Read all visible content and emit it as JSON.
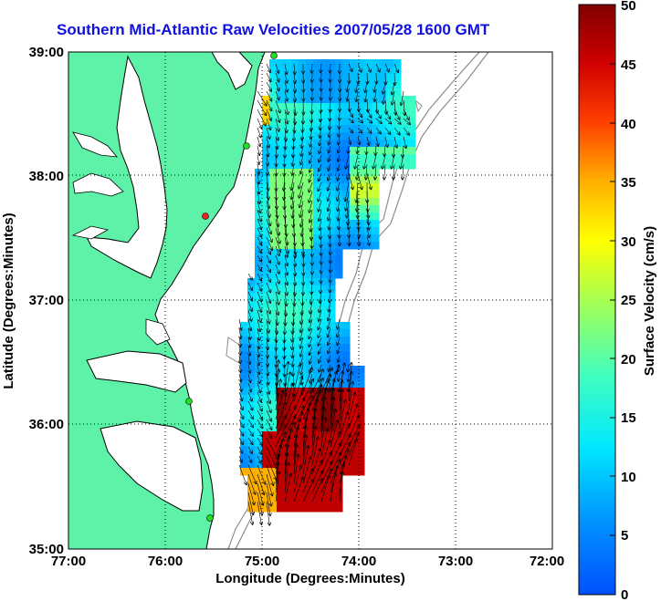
{
  "title": "Southern Mid-Atlantic Raw Velocities 2007/05/28 1600 GMT",
  "x_axis": {
    "label": "Longitude (Degrees:Minutes)",
    "ticks": [
      "77:00",
      "76:00",
      "75:00",
      "74:00",
      "73:00",
      "72:00"
    ]
  },
  "y_axis": {
    "label": "Latitude (Degrees:Minutes)",
    "ticks": [
      "39:00",
      "38:00",
      "37:00",
      "36:00",
      "35:00"
    ]
  },
  "colorbar": {
    "label": "Surface Velocity (cm/s)",
    "ticks": [
      "50",
      "45",
      "40",
      "35",
      "30",
      "25",
      "20",
      "15",
      "10",
      "5",
      "0"
    ],
    "colormap": "jet",
    "range": [
      0,
      50
    ]
  },
  "colors": {
    "land": "#5ef2a8",
    "coastline": "#000000",
    "bathymetry": "#8c8c8c",
    "title": "#1010e0",
    "site_marker": "#22dd22",
    "site_marker_inactive": "#ee2222"
  }
}
